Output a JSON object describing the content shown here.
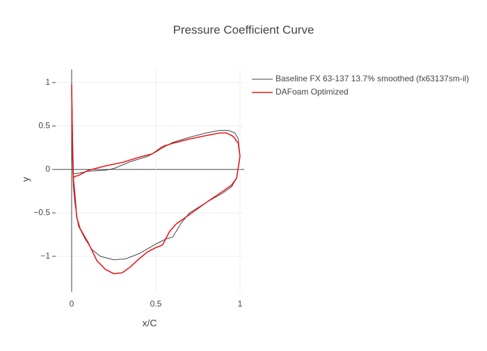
{
  "chart_data": {
    "type": "line",
    "title": "Pressure Coefficient Curve",
    "x_label": "x/C",
    "y_label": "y",
    "xlim": [
      -0.095,
      1.025
    ],
    "ylim": [
      -1.41,
      1.15
    ],
    "xticks": [
      0,
      0.5,
      1
    ],
    "yticks": [
      {
        "value": -1,
        "label": "−1"
      },
      {
        "value": -0.5,
        "label": "−0.5"
      },
      0,
      0.5,
      1
    ],
    "grid": true,
    "legend": "top-right",
    "series": [
      {
        "name": "Baseline FX 63-137 13.7% smoothed (fx63137sm-il)",
        "color": "#444444",
        "x": [
          1,
          0.99,
          0.97,
          0.93,
          0.88,
          0.8,
          0.7,
          0.6,
          0.55,
          0.5,
          0.45,
          0.4,
          0.35,
          0.3,
          0.25,
          0.2,
          0.1,
          0.05,
          0.01,
          0,
          0.003,
          0.01,
          0.02,
          0.04,
          0.08,
          0.12,
          0.17,
          0.25,
          0.32,
          0.4,
          0.5,
          0.56,
          0.6,
          0.65,
          0.7,
          0.8,
          0.9,
          0.95,
          0.98,
          1
        ],
        "y": [
          0.15,
          0.35,
          0.42,
          0.45,
          0.45,
          0.42,
          0.37,
          0.31,
          0.26,
          0.2,
          0.15,
          0.12,
          0.09,
          0.05,
          0.01,
          -0.01,
          -0.02,
          -0.04,
          -0.05,
          0.98,
          0.2,
          -0.2,
          -0.4,
          -0.65,
          -0.8,
          -0.92,
          -1.0,
          -1.04,
          -1.03,
          -0.97,
          -0.86,
          -0.8,
          -0.78,
          -0.62,
          -0.5,
          -0.38,
          -0.27,
          -0.2,
          -0.1,
          0.15
        ]
      },
      {
        "name": "DAFoam Optimized",
        "color": "#e8191c",
        "x": [
          1,
          0.99,
          0.96,
          0.92,
          0.88,
          0.8,
          0.7,
          0.6,
          0.55,
          0.53,
          0.48,
          0.4,
          0.3,
          0.2,
          0.1,
          0.04,
          0.02,
          0.01,
          0.005,
          0,
          0.003,
          0.01,
          0.02,
          0.03,
          0.05,
          0.1,
          0.15,
          0.2,
          0.25,
          0.3,
          0.35,
          0.4,
          0.45,
          0.5,
          0.54,
          0.58,
          0.62,
          0.7,
          0.8,
          0.9,
          0.95,
          0.98,
          1
        ],
        "y": [
          0.15,
          0.3,
          0.38,
          0.42,
          0.42,
          0.39,
          0.35,
          0.3,
          0.27,
          0.25,
          0.18,
          0.14,
          0.08,
          0.04,
          -0.01,
          -0.07,
          -0.08,
          -0.1,
          0.3,
          0.98,
          0.5,
          -0.1,
          -0.3,
          -0.55,
          -0.68,
          -0.85,
          -1.05,
          -1.15,
          -1.2,
          -1.19,
          -1.12,
          -1.03,
          -0.95,
          -0.9,
          -0.87,
          -0.72,
          -0.63,
          -0.52,
          -0.38,
          -0.25,
          -0.18,
          -0.1,
          0.15
        ]
      }
    ]
  }
}
